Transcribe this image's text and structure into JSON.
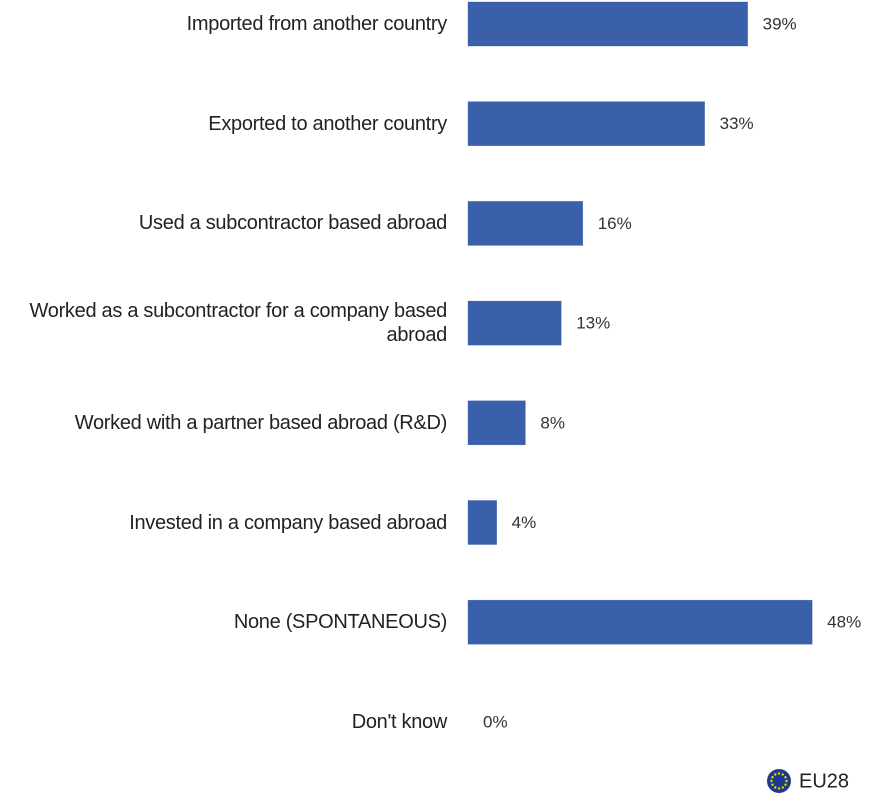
{
  "chart_data": {
    "type": "bar",
    "orientation": "horizontal",
    "categories": [
      "Imported from another country",
      "Exported to another country",
      "Used a subcontractor based abroad",
      "Worked as a subcontractor for a company based abroad",
      "Worked with a partner based abroad (R&D)",
      "Invested in a company based abroad",
      "None (SPONTANEOUS)",
      "Don't know"
    ],
    "series": [
      {
        "name": "EU28",
        "color": "#3a60aa",
        "values": [
          39,
          33,
          16,
          13,
          8,
          4,
          48,
          0
        ],
        "value_labels": [
          "39%",
          "33%",
          "16%",
          "13%",
          "8%",
          "4%",
          "48%",
          "0%"
        ]
      }
    ],
    "legend": "bottom-right"
  }
}
